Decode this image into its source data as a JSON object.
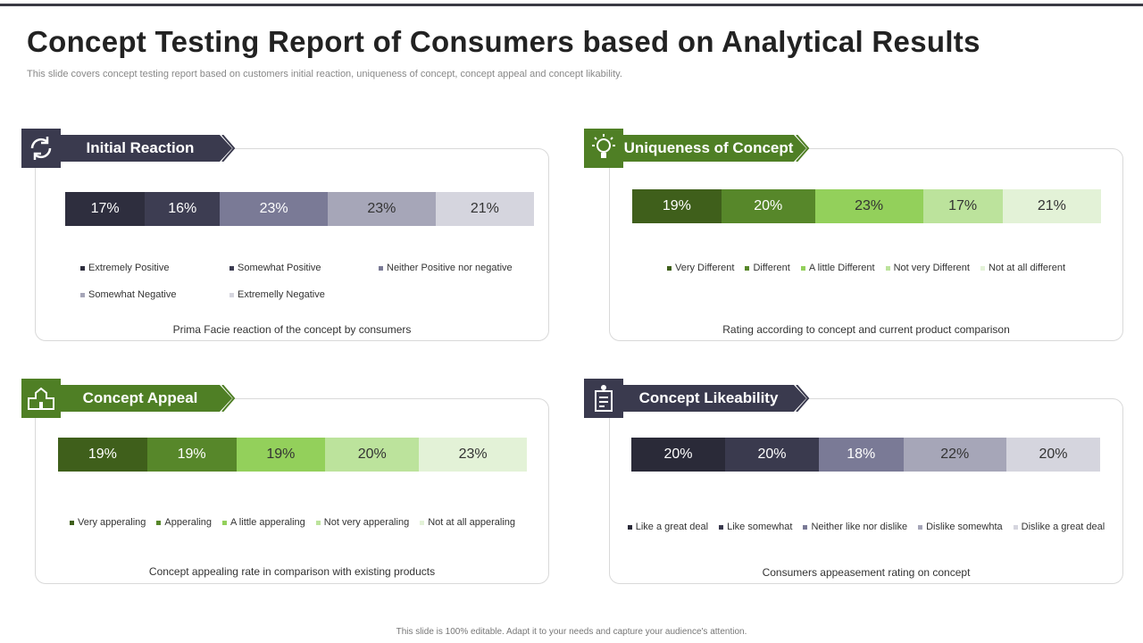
{
  "title": "Concept Testing Report of Consumers based on Analytical Results",
  "subtitle": "This slide covers concept testing report based on customers initial reaction, uniqueness of concept, concept appeal and concept likability.",
  "footer": "This slide is 100% editable. Adapt it to your needs and capture your audience's attention.",
  "chart_data": [
    {
      "type": "bar",
      "orientation": "horizontal",
      "stacked": true,
      "title": "Initial Reaction",
      "caption": "Prima Facie reaction of the concept by consumers",
      "xlim": [
        0,
        100
      ],
      "series": [
        {
          "name": "Extremely Positive",
          "color": "#2e2e3e",
          "values": [
            17
          ],
          "value_labels": [
            "17%"
          ]
        },
        {
          "name": "Somewhat Positive",
          "color": "#3d3d52",
          "values": [
            16
          ],
          "value_labels": [
            "16%"
          ]
        },
        {
          "name": "Neither Positive nor negative",
          "color": "#7a7a96",
          "values": [
            23
          ],
          "value_labels": [
            "23%"
          ]
        },
        {
          "name": "Somewhat Negative",
          "color": "#a6a6b8",
          "values": [
            23
          ],
          "value_labels": [
            "23%"
          ]
        },
        {
          "name": "Extremelly Negative",
          "color": "#d5d5de",
          "values": [
            21
          ],
          "value_labels": [
            "21%"
          ]
        }
      ]
    },
    {
      "type": "bar",
      "orientation": "horizontal",
      "stacked": true,
      "title": "Uniqueness of Concept",
      "caption": "Rating according to concept and current product comparison",
      "xlim": [
        0,
        100
      ],
      "series": [
        {
          "name": "Very Different",
          "color": "#3f5f1b",
          "values": [
            19
          ],
          "value_labels": [
            "19%"
          ]
        },
        {
          "name": "Different",
          "color": "#57872a",
          "values": [
            20
          ],
          "value_labels": [
            "20%"
          ]
        },
        {
          "name": "A little Different",
          "color": "#93d05b",
          "values": [
            23
          ],
          "value_labels": [
            "23%"
          ]
        },
        {
          "name": "Not very Different",
          "color": "#bce39c",
          "values": [
            17
          ],
          "value_labels": [
            "17%"
          ]
        },
        {
          "name": "Not at all different",
          "color": "#e3f2d7",
          "values": [
            21
          ],
          "value_labels": [
            "21%"
          ]
        }
      ]
    },
    {
      "type": "bar",
      "orientation": "horizontal",
      "stacked": true,
      "title": "Concept Appeal",
      "caption": "Concept appealing rate in comparison with existing products",
      "xlim": [
        0,
        100
      ],
      "series": [
        {
          "name": "Very apperaling",
          "color": "#3f5f1b",
          "values": [
            19
          ],
          "value_labels": [
            "19%"
          ]
        },
        {
          "name": "Apperaling",
          "color": "#57872a",
          "values": [
            19
          ],
          "value_labels": [
            "19%"
          ]
        },
        {
          "name": "A little apperaling",
          "color": "#93d05b",
          "values": [
            19
          ],
          "value_labels": [
            "19%"
          ]
        },
        {
          "name": "Not very apperaling",
          "color": "#bce39c",
          "values": [
            20
          ],
          "value_labels": [
            "20%"
          ]
        },
        {
          "name": "Not at all apperaling",
          "color": "#e3f2d7",
          "values": [
            23
          ],
          "value_labels": [
            "23%"
          ]
        }
      ]
    },
    {
      "type": "bar",
      "orientation": "horizontal",
      "stacked": true,
      "title": "Concept Likeability",
      "caption": "Consumers appeasement rating on concept",
      "xlim": [
        0,
        100
      ],
      "series": [
        {
          "name": "Like a great deal",
          "color": "#2a2a38",
          "values": [
            20
          ],
          "value_labels": [
            "20%"
          ]
        },
        {
          "name": "Like somewhat",
          "color": "#3a3a4e",
          "values": [
            20
          ],
          "value_labels": [
            "20%"
          ]
        },
        {
          "name": "Neither like nor dislike",
          "color": "#7a7a96",
          "values": [
            18
          ],
          "value_labels": [
            "18%"
          ]
        },
        {
          "name": "Dislike somewhta",
          "color": "#a6a6b8",
          "values": [
            22
          ],
          "value_labels": [
            "22%"
          ]
        },
        {
          "name": "Dislike a great deal",
          "color": "#d5d5de",
          "values": [
            20
          ],
          "value_labels": [
            "20%"
          ]
        }
      ]
    }
  ]
}
